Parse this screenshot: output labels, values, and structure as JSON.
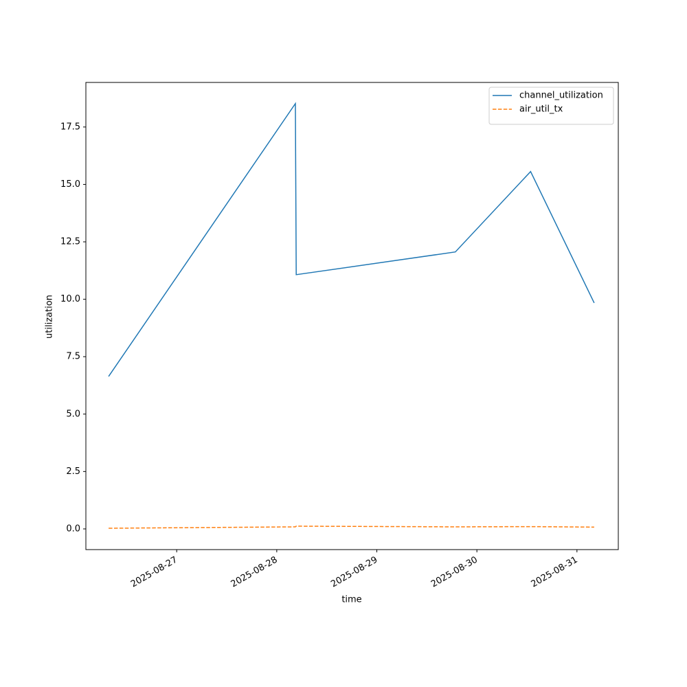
{
  "chart_data": {
    "type": "line",
    "x": [
      "2025-08-26T07:40",
      "2025-08-28T04:28",
      "2025-08-28T04:40",
      "2025-08-29T18:50",
      "2025-08-30T12:53",
      "2025-08-31T04:08"
    ],
    "series": [
      {
        "name": "channel_utilization",
        "color": "#1f77b4",
        "linestyle": "solid",
        "values": [
          6.64,
          18.52,
          11.07,
          12.06,
          15.56,
          9.84
        ]
      },
      {
        "name": "air_util_tx",
        "color": "#ff7f0e",
        "linestyle": "dashed",
        "values": [
          0.03,
          0.09,
          0.12,
          0.09,
          0.1,
          0.08
        ]
      }
    ],
    "xlabel": "time",
    "ylabel": "utilization",
    "xlim": [
      "2025-08-26T02:13",
      "2025-08-31T09:55"
    ],
    "xticks": [
      "2025-08-27",
      "2025-08-28",
      "2025-08-29",
      "2025-08-30",
      "2025-08-31"
    ],
    "ylim": [
      -0.9,
      19.44
    ],
    "yticks": [
      {
        "value": 0,
        "label": "0.0"
      },
      2.5,
      {
        "value": 5,
        "label": "5.0"
      },
      7.5,
      {
        "value": 10,
        "label": "10.0"
      },
      12.5,
      {
        "value": 15,
        "label": "15.0"
      },
      17.5
    ],
    "legend": "upper right",
    "grid": false
  }
}
